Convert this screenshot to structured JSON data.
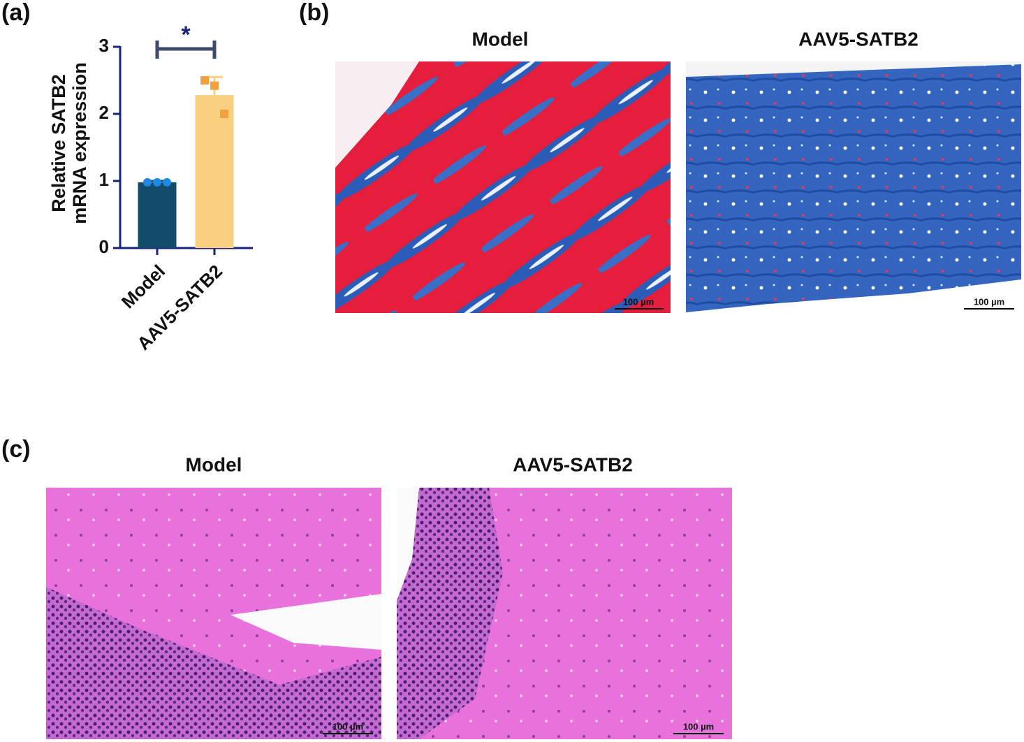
{
  "panels": {
    "a": "(a)",
    "b": "(b)",
    "c": "(c)"
  },
  "panel_b": {
    "titles": [
      "Model",
      "AAV5-SATB2"
    ],
    "scale_bars": [
      "100 µm",
      "100 µm"
    ]
  },
  "panel_c": {
    "titles": [
      "Model",
      "AAV5-SATB2"
    ],
    "scale_bars": [
      "100 µm",
      "100 µm"
    ]
  },
  "chart_data": {
    "type": "bar",
    "y_label": [
      "Relative SATB2",
      "mRNA expression"
    ],
    "categories": [
      "Model",
      "AAV5-SATB2"
    ],
    "values": [
      0.98,
      2.28
    ],
    "errors": [
      0.02,
      0.27
    ],
    "colors": [
      "#134b6b",
      "#f9d07f"
    ],
    "points": [
      [
        0.98,
        0.98,
        0.98
      ],
      [
        2.5,
        2.42,
        2.0
      ]
    ],
    "point_colors": [
      "#1e88e5",
      "#f4a040"
    ],
    "annotation": "*",
    "ylim": [
      0,
      3
    ],
    "yticks": [
      0,
      1,
      2,
      3
    ]
  }
}
